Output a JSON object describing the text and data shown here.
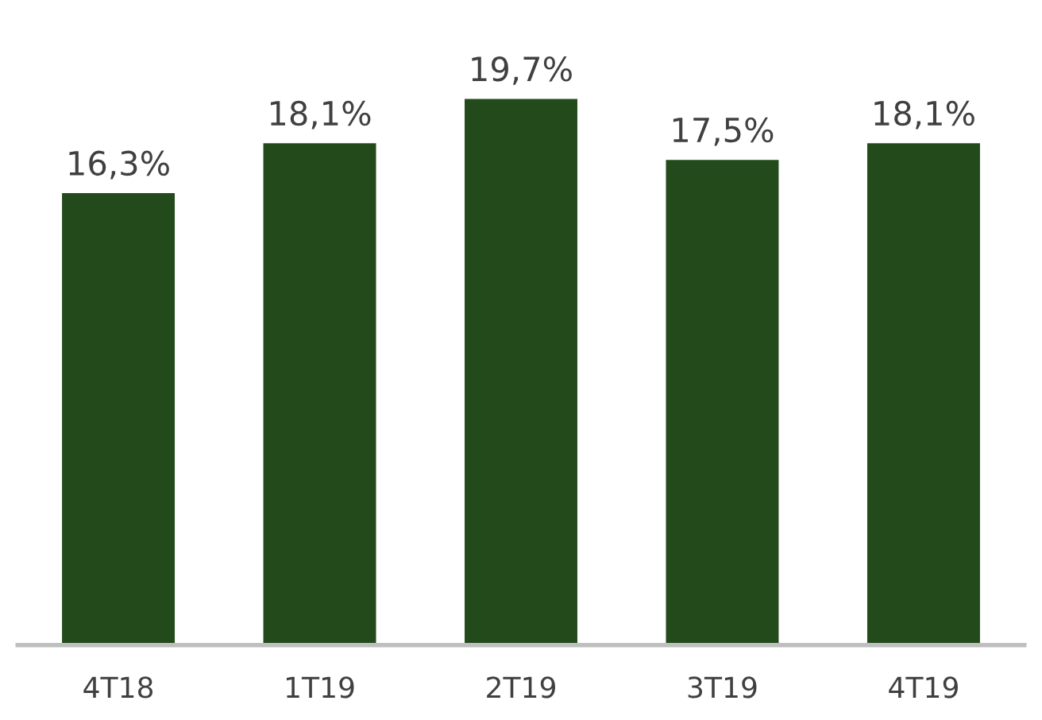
{
  "chart_data": {
    "type": "bar",
    "categories": [
      "4T18",
      "1T19",
      "2T19",
      "3T19",
      "4T19"
    ],
    "values": [
      16.3,
      18.1,
      19.7,
      17.5,
      18.1
    ],
    "value_labels": [
      "16,3%",
      "18,1%",
      "19,7%",
      "17,5%",
      "18,1%"
    ],
    "color": "#234a1a"
  }
}
